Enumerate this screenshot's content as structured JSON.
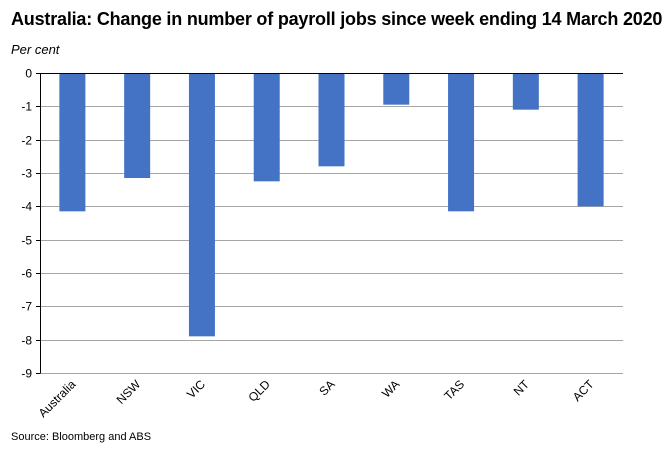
{
  "title": "Australia: Change in number of payroll jobs since week ending 14 March 2020",
  "y_unit_label": "Per cent",
  "source": "Source: Bloomberg and ABS",
  "colors": {
    "bar": "#4472C4",
    "gridline": "#a6a6a6",
    "axis": "#000000"
  },
  "chart_data": {
    "type": "bar",
    "categories": [
      "Australia",
      "NSW",
      "VIC",
      "QLD",
      "SA",
      "WA",
      "TAS",
      "NT",
      "ACT"
    ],
    "values": [
      -4.15,
      -3.15,
      -7.9,
      -3.25,
      -2.8,
      -0.95,
      -4.15,
      -1.1,
      -4.0
    ],
    "ylabel": "Per cent",
    "xlabel": "",
    "ylim": [
      -9,
      0
    ],
    "yticks": [
      0,
      -1,
      -2,
      -3,
      -4,
      -5,
      -6,
      -7,
      -8,
      -9
    ],
    "grid": true,
    "legend": "none"
  }
}
